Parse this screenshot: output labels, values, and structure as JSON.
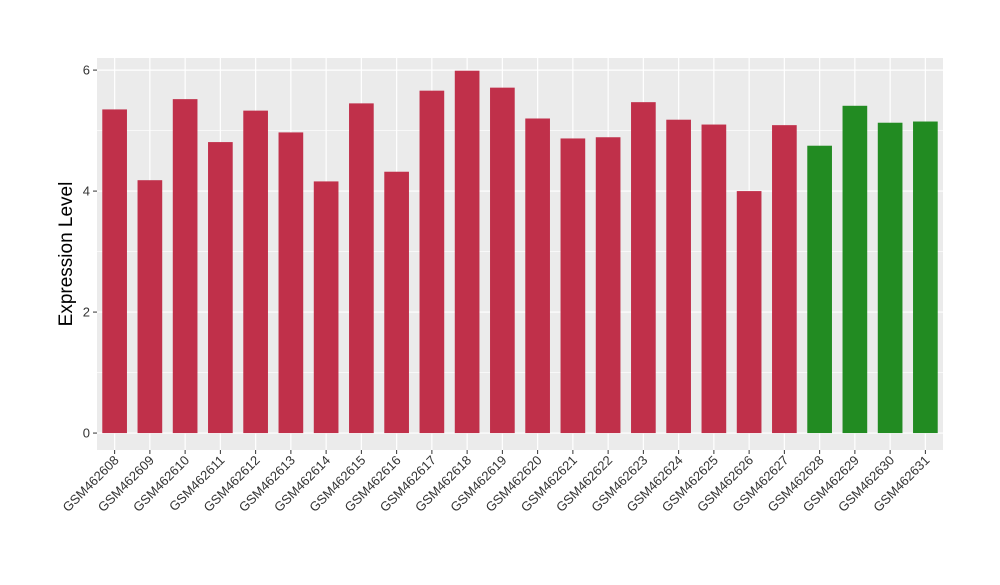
{
  "chart_data": {
    "type": "bar",
    "ylabel": "Expression Level",
    "xlabel": "",
    "ylim": [
      -0.28,
      6.2
    ],
    "yticks": [
      0,
      2,
      4,
      6
    ],
    "grid": true,
    "categories": [
      "GSM462608",
      "GSM462609",
      "GSM462610",
      "GSM462611",
      "GSM462612",
      "GSM462613",
      "GSM462614",
      "GSM462615",
      "GSM462616",
      "GSM462617",
      "GSM462618",
      "GSM462619",
      "GSM462620",
      "GSM462621",
      "GSM462622",
      "GSM462623",
      "GSM462624",
      "GSM462625",
      "GSM462626",
      "GSM462627",
      "GSM462628",
      "GSM462629",
      "GSM462630",
      "GSM462631"
    ],
    "values": [
      5.35,
      4.18,
      5.52,
      4.81,
      5.33,
      4.97,
      4.16,
      5.45,
      4.32,
      5.66,
      5.99,
      5.71,
      5.2,
      4.87,
      4.89,
      5.47,
      5.18,
      5.1,
      4.0,
      5.09,
      4.75,
      5.41,
      5.13,
      5.15
    ],
    "colors": [
      "#C0304A",
      "#C0304A",
      "#C0304A",
      "#C0304A",
      "#C0304A",
      "#C0304A",
      "#C0304A",
      "#C0304A",
      "#C0304A",
      "#C0304A",
      "#C0304A",
      "#C0304A",
      "#C0304A",
      "#C0304A",
      "#C0304A",
      "#C0304A",
      "#C0304A",
      "#C0304A",
      "#C0304A",
      "#C0304A",
      "#228B22",
      "#228B22",
      "#228B22",
      "#228B22"
    ],
    "panel_background": "#EBEBEB",
    "grid_color": "#FFFFFF"
  }
}
